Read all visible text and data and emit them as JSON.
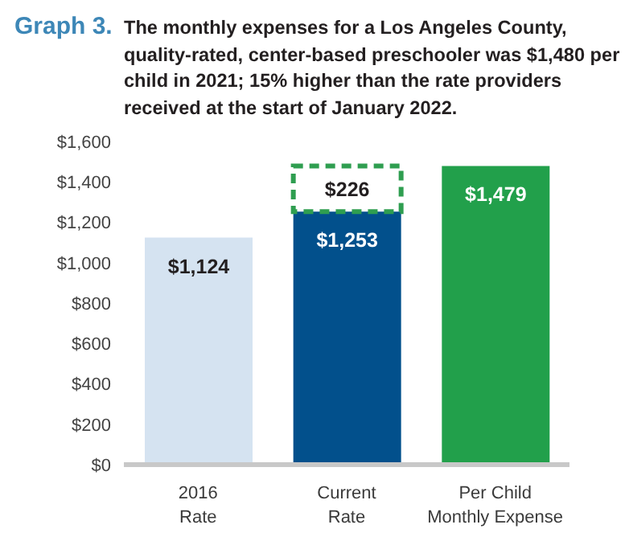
{
  "chart_data": {
    "type": "bar",
    "title": "Graph 3.",
    "subtitle": "The monthly expenses for a Los Angeles County, quality-rated, center-based preschooler was $1,480 per child in 2021; 15% higher than the rate providers received at the start of January 2022.",
    "categories": [
      "2016 Rate",
      "Current Rate",
      "Per Child Monthly Expense"
    ],
    "series": [
      {
        "colors": [
          "#d5e3f1",
          "#02508c",
          "#22a04b"
        ],
        "values": [
          1124,
          1253,
          1479
        ],
        "value_labels": [
          "$1,124",
          "$1,253",
          "$1,479"
        ]
      },
      {
        "color": "#2f9e50",
        "values": [
          null,
          226,
          null
        ],
        "value_labels": [
          null,
          "$226",
          null
        ],
        "line_style": "dashed"
      }
    ],
    "stacked": true,
    "ylim": [
      0,
      1600
    ],
    "yticks": [
      {
        "value": 0,
        "label": "$0"
      },
      {
        "value": 200,
        "label": "$200"
      },
      {
        "value": 400,
        "label": "$400"
      },
      {
        "value": 600,
        "label": "$600"
      },
      {
        "value": 800,
        "label": "$800"
      },
      {
        "value": 1000,
        "label": "$1,000"
      },
      {
        "value": 1200,
        "label": "$1,200"
      },
      {
        "value": 1400,
        "label": "$1,400"
      },
      {
        "value": 1600,
        "label": "$1,600"
      }
    ]
  }
}
